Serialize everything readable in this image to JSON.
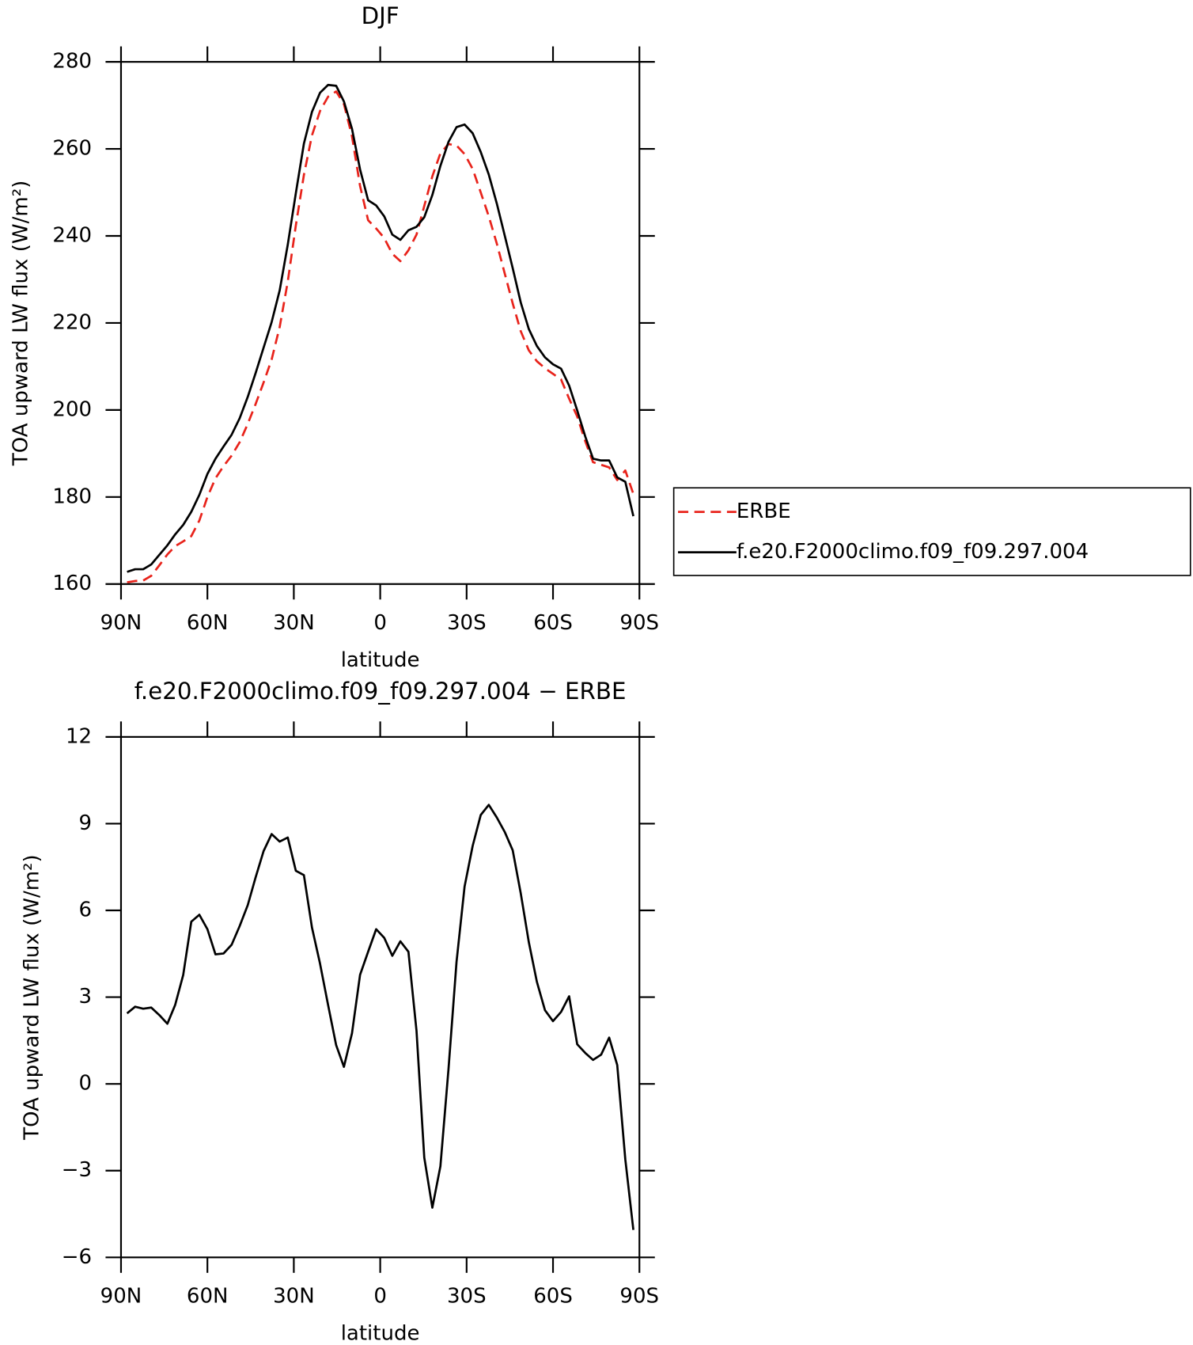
{
  "chart_data": [
    {
      "type": "line",
      "title": "DJF",
      "xlabel": "latitude",
      "ylabel": "TOA upward LW flux (W/m²)",
      "x": [
        87.9,
        85.1,
        82.3,
        79.5,
        76.7,
        73.9,
        71.2,
        68.4,
        65.6,
        62.8,
        60.0,
        57.2,
        54.4,
        51.6,
        48.8,
        46.0,
        43.3,
        40.5,
        37.7,
        34.9,
        32.1,
        29.3,
        26.5,
        23.7,
        20.9,
        18.1,
        15.3,
        12.6,
        9.8,
        7.0,
        4.2,
        1.4,
        -1.4,
        -4.2,
        -7.0,
        -9.8,
        -12.6,
        -15.3,
        -18.1,
        -20.9,
        -23.7,
        -26.5,
        -29.3,
        -32.1,
        -34.9,
        -37.7,
        -40.5,
        -43.3,
        -46.0,
        -48.8,
        -51.6,
        -54.4,
        -57.2,
        -60.0,
        -62.8,
        -65.6,
        -68.4,
        -71.2,
        -73.9,
        -76.7,
        -79.5,
        -82.3,
        -85.1,
        -87.9
      ],
      "series": [
        {
          "name": "ERBE",
          "color": "#e8231b",
          "style": "dashed",
          "values": [
            160.4,
            160.7,
            160.8,
            161.9,
            164.3,
            166.8,
            168.7,
            169.8,
            171.0,
            174.6,
            180.0,
            184.3,
            187.1,
            189.5,
            192.6,
            196.8,
            201.3,
            206.3,
            211.6,
            219.1,
            229.5,
            242.4,
            254.0,
            263.1,
            268.7,
            272.0,
            273.2,
            270.3,
            262.9,
            251.5,
            243.6,
            241.7,
            239.5,
            235.9,
            234.2,
            236.7,
            240.3,
            246.9,
            253.7,
            259.0,
            261.1,
            260.8,
            258.8,
            255.4,
            250.0,
            244.5,
            238.2,
            231.2,
            224.5,
            218.1,
            213.7,
            211.2,
            209.6,
            208.3,
            207.0,
            202.6,
            198.5,
            192.8,
            188.0,
            187.4,
            186.8,
            183.9,
            186.1,
            180.7
          ]
        },
        {
          "name": "f.e20.F2000climo.f09_f09.297.004",
          "color": "#000000",
          "style": "solid",
          "values": [
            162.8,
            163.4,
            163.4,
            164.5,
            166.7,
            168.9,
            171.4,
            173.6,
            176.6,
            180.5,
            185.3,
            188.8,
            191.6,
            194.3,
            198.1,
            203.0,
            208.4,
            214.3,
            220.2,
            227.5,
            238.0,
            249.8,
            261.2,
            268.5,
            272.9,
            274.7,
            274.5,
            270.9,
            264.6,
            255.3,
            248.2,
            247.0,
            244.5,
            240.3,
            239.1,
            241.3,
            242.1,
            244.3,
            249.4,
            256.1,
            261.6,
            265.0,
            265.6,
            263.6,
            259.3,
            254.1,
            247.4,
            239.9,
            232.6,
            224.7,
            218.6,
            214.7,
            212.1,
            210.5,
            209.5,
            205.6,
            199.9,
            193.9,
            188.8,
            188.4,
            188.4,
            184.5,
            183.5,
            175.6
          ]
        }
      ],
      "xlim": [
        90,
        -90
      ],
      "xticks": [
        {
          "value": 90,
          "label": "90N"
        },
        {
          "value": 60,
          "label": "60N"
        },
        {
          "value": 30,
          "label": "30N"
        },
        0,
        {
          "value": -30,
          "label": "30S"
        },
        {
          "value": -60,
          "label": "60S"
        },
        {
          "value": -90,
          "label": "90S"
        }
      ],
      "ylim": [
        160,
        280
      ],
      "yticks": [
        160,
        180,
        200,
        220,
        240,
        260,
        280
      ],
      "legend": "right"
    },
    {
      "type": "line",
      "title": "f.e20.F2000climo.f09_f09.297.004 − ERBE",
      "xlabel": "latitude",
      "ylabel": "TOA upward LW flux (W/m²)",
      "x": [
        87.9,
        85.1,
        82.3,
        79.5,
        76.7,
        73.9,
        71.2,
        68.4,
        65.6,
        62.8,
        60.0,
        57.2,
        54.4,
        51.6,
        48.8,
        46.0,
        43.3,
        40.5,
        37.7,
        34.9,
        32.1,
        29.3,
        26.5,
        23.7,
        20.9,
        18.1,
        15.3,
        12.6,
        9.8,
        7.0,
        4.2,
        1.4,
        -1.4,
        -4.2,
        -7.0,
        -9.8,
        -12.6,
        -15.3,
        -18.1,
        -20.9,
        -23.7,
        -26.5,
        -29.3,
        -32.1,
        -34.9,
        -37.7,
        -40.5,
        -43.3,
        -46.0,
        -48.8,
        -51.6,
        -54.4,
        -57.2,
        -60.0,
        -62.8,
        -65.6,
        -68.4,
        -71.2,
        -73.9,
        -76.7,
        -79.5,
        -82.3,
        -85.1,
        -87.9
      ],
      "series": [
        {
          "color": "#000000",
          "style": "solid",
          "values": [
            2.44,
            2.67,
            2.6,
            2.64,
            2.38,
            2.08,
            2.73,
            3.77,
            5.61,
            5.85,
            5.35,
            4.48,
            4.51,
            4.81,
            5.46,
            6.18,
            7.13,
            8.05,
            8.64,
            8.38,
            8.52,
            7.37,
            7.22,
            5.41,
            4.16,
            2.73,
            1.34,
            0.59,
            1.75,
            3.77,
            4.57,
            5.35,
            5.05,
            4.43,
            4.93,
            4.57,
            1.84,
            -2.55,
            -4.28,
            -2.85,
            0.5,
            4.22,
            6.83,
            8.23,
            9.3,
            9.65,
            9.21,
            8.7,
            8.08,
            6.59,
            4.9,
            3.53,
            2.55,
            2.17,
            2.49,
            3.03,
            1.37,
            1.07,
            0.83,
            1.01,
            1.6,
            0.65,
            -2.61,
            -5.05
          ]
        }
      ],
      "xlim": [
        90,
        -90
      ],
      "xticks": [
        {
          "value": 90,
          "label": "90N"
        },
        {
          "value": 60,
          "label": "60N"
        },
        {
          "value": 30,
          "label": "30N"
        },
        0,
        {
          "value": -30,
          "label": "30S"
        },
        {
          "value": -60,
          "label": "60S"
        },
        {
          "value": -90,
          "label": "90S"
        }
      ],
      "ylim": [
        -6,
        12
      ],
      "yticks": [
        {
          "value": -6,
          "label": "−6"
        },
        {
          "value": -3,
          "label": "−3"
        },
        0,
        3,
        6,
        9,
        12
      ]
    }
  ]
}
